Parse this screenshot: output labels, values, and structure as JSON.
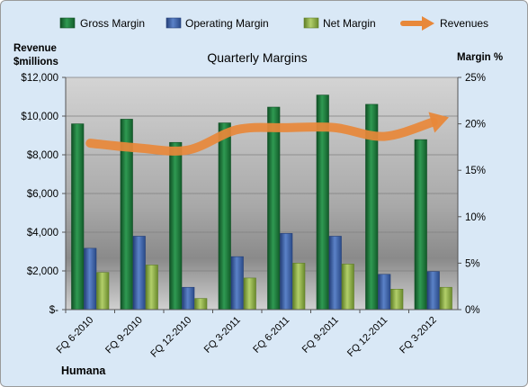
{
  "chart_data": {
    "type": "bar",
    "title": "Quarterly Margins",
    "company": "Humana",
    "y_left_label_line1": "Revenue",
    "y_left_label_line2": "$millions",
    "y_right_label": "Margin %",
    "categories": [
      "FQ 6-2010",
      "FQ 9-2010",
      "FQ 12-2010",
      "FQ 3-2011",
      "FQ 6-2011",
      "FQ 9-2011",
      "FQ 12-2011",
      "FQ 3-2012"
    ],
    "y_left_ticks": [
      "$-",
      "$2,000",
      "$4,000",
      "$6,000",
      "$8,000",
      "$10,000",
      "$12,000"
    ],
    "y_right_ticks": [
      "0%",
      "5%",
      "10%",
      "15%",
      "20%",
      "25%"
    ],
    "ylim_left": [
      0,
      12000
    ],
    "ylim_right": [
      0,
      25
    ],
    "legend_position": "top",
    "series": [
      {
        "name": "Gross Margin",
        "axis": "right",
        "kind": "bar",
        "color": "#1e7a3c",
        "values": [
          20.0,
          20.5,
          18.0,
          20.1,
          21.8,
          23.1,
          22.1,
          18.3
        ]
      },
      {
        "name": "Operating Margin",
        "axis": "right",
        "kind": "bar",
        "color": "#3d63a8",
        "values": [
          6.6,
          7.9,
          2.4,
          5.7,
          8.2,
          7.9,
          3.8,
          4.1
        ]
      },
      {
        "name": "Net Margin",
        "axis": "right",
        "kind": "bar",
        "color": "#8fb04a",
        "values": [
          4.0,
          4.8,
          1.2,
          3.4,
          5.0,
          4.9,
          2.2,
          2.4
        ]
      },
      {
        "name": "Revenues",
        "axis": "left",
        "kind": "line",
        "color": "#e8883a",
        "values": [
          8600,
          8350,
          8250,
          9300,
          9400,
          9400,
          8950,
          9700
        ]
      }
    ]
  }
}
